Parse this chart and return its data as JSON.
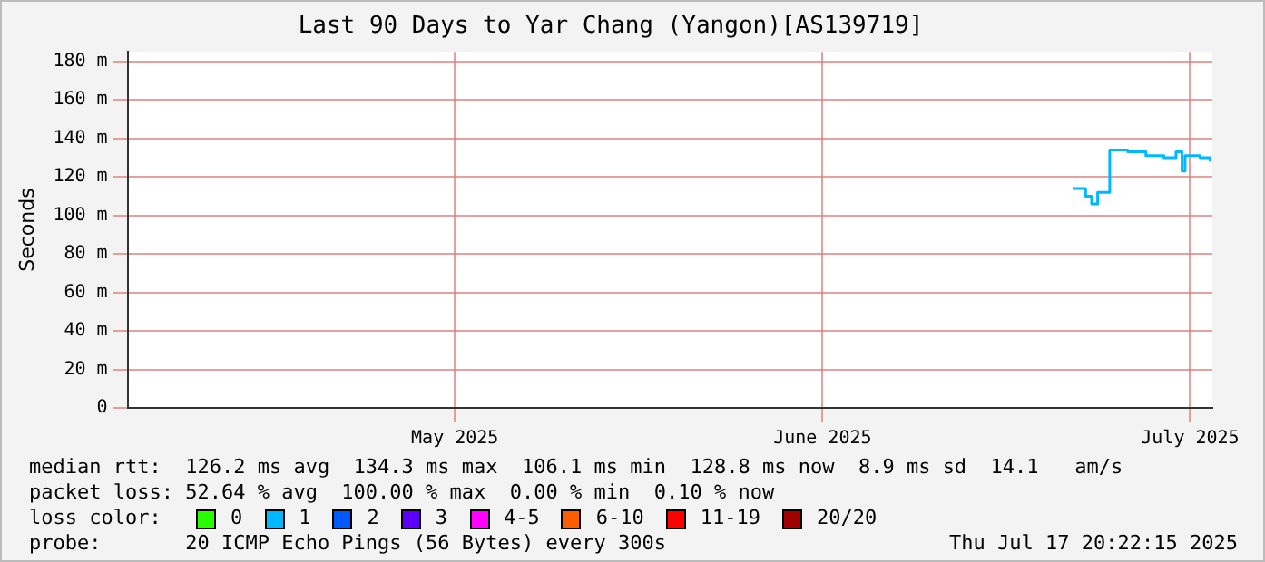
{
  "chart_data": {
    "type": "step",
    "title": "Last 90 Days to Yar Chang (Yangon)[AS139719]",
    "ylabel": "Seconds",
    "x": [
      "2025-07-06T06:00",
      "2025-07-06T20:00",
      "2025-07-07T08:00",
      "2025-07-07T20:00",
      "2025-07-08T08:00",
      "2025-07-09T02:00",
      "2025-07-09T08:00",
      "2025-07-10T20:00",
      "2025-07-12T08:00",
      "2025-07-13T20:00",
      "2025-07-14T20:00",
      "2025-07-15T08:00",
      "2025-07-15T14:00",
      "2025-07-16T20:00",
      "2025-07-17T16:00"
    ],
    "series": [
      {
        "color": "#00b8ff",
        "values": [
          114,
          114,
          110,
          106,
          112,
          112,
          134,
          133,
          131,
          130,
          133,
          123,
          131,
          130,
          128
        ]
      }
    ],
    "xlim": [
      "2025-04-18T20:22",
      "2025-07-17T20:22"
    ],
    "xticks": [
      {
        "value": "2025-05-16",
        "label": "May 2025"
      },
      {
        "value": "2025-06-15T12:00",
        "label": "June 2025"
      },
      {
        "value": "2025-07-16",
        "label": "July 2025"
      }
    ],
    "ylim": [
      0,
      185
    ],
    "yticks": [
      0,
      {
        "value": 20,
        "label": "20 m"
      },
      {
        "value": 40,
        "label": "40 m"
      },
      {
        "value": 60,
        "label": "60 m"
      },
      {
        "value": 80,
        "label": "80 m"
      },
      {
        "value": 100,
        "label": "100 m"
      },
      {
        "value": 120,
        "label": "120 m"
      },
      {
        "value": 140,
        "label": "140 m"
      },
      {
        "value": 160,
        "label": "160 m"
      },
      {
        "value": 180,
        "label": "180 m"
      }
    ],
    "grid": true,
    "legend": false,
    "marker": "none",
    "line_style": "solid",
    "annotations": [
      "median rtt:  126.2 ms avg  134.3 ms max  106.1 ms min  128.8 ms now  8.9 ms sd  14.1   am/s",
      "packet loss: 52.64 % avg  100.00 % max  0.00 % min  0.10 % now",
      "loss color:",
      "0",
      "1",
      "2",
      "3",
      "4-5",
      "6-10",
      "11-19",
      "20/20",
      "probe:       20 ICMP Echo Pings (56 Bytes) every 300s",
      "Thu Jul 17 20:22:15 2025"
    ]
  }
}
